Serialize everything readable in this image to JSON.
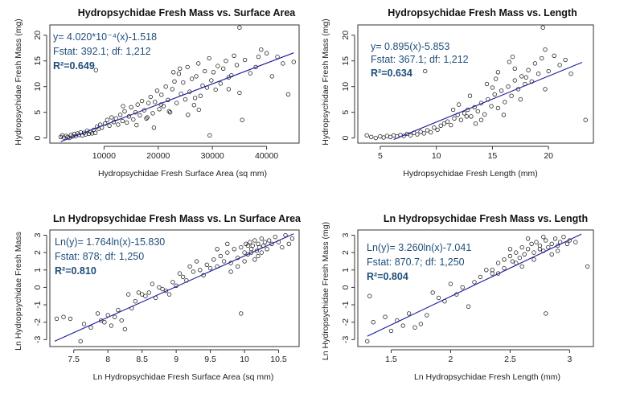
{
  "chart_data": [
    {
      "type": "scatter",
      "title": "Hydropsychidae Fresh Mass vs. Surface Area",
      "xlabel": "Hydropsychidae Fresh Surface Area (sq mm)",
      "ylabel": "Hydropsychidae Fresh Mass (mg)",
      "xlim": [
        0,
        46000
      ],
      "ylim": [
        -1,
        22
      ],
      "xticks": [
        10000,
        20000,
        30000,
        40000
      ],
      "yticks": [
        0,
        5,
        10,
        15,
        20
      ],
      "annotation": {
        "equation": "y= 4.020*10⁻⁴(x)-1.518",
        "fstat": "Fstat: 392.1; df: 1,212",
        "r2_label": "R²=",
        "r2_value": "0.649"
      },
      "fit": {
        "slope": 0.000402,
        "intercept": -1.518,
        "x_range": [
          2000,
          45000
        ]
      },
      "series": [
        {
          "x": [
            2000,
            2300,
            2600,
            3000,
            3300,
            3600,
            3900,
            4200,
            4500,
            4800,
            5100,
            5400,
            5700,
            6000,
            6300,
            6600,
            6900,
            7200,
            7500,
            7800,
            8100,
            8400,
            8700,
            9000,
            9300,
            9600,
            10200,
            10600,
            11000,
            11400,
            11800,
            12200,
            12600,
            13000,
            13400,
            13800,
            14200,
            14600,
            15000,
            15400,
            15800,
            16200,
            16600,
            17000,
            17400,
            17800,
            18200,
            18600,
            19000,
            19400,
            19800,
            20200,
            20600,
            21000,
            21400,
            21800,
            22200,
            22600,
            23000,
            23400,
            23800,
            24200,
            24600,
            25000,
            25400,
            25800,
            26200,
            26600,
            27000,
            27400,
            27800,
            28200,
            28600,
            29000,
            29400,
            29800,
            30200,
            30600,
            31000,
            31500,
            32000,
            32500,
            33000,
            33500,
            34000,
            34500,
            35000,
            35500,
            36000,
            37000,
            38000,
            39000,
            40000,
            41000,
            42000,
            43000,
            44000,
            45000,
            8500,
            13500,
            16000,
            18000,
            20500,
            22000,
            24000,
            25500,
            27500,
            29500,
            33000,
            35000,
            38500,
            22800,
            19200,
            26800
          ],
          "y": [
            0.2,
            0.5,
            0.1,
            0.4,
            0.2,
            0.0,
            0.6,
            0.3,
            0.8,
            0.4,
            0.9,
            0.6,
            1.1,
            0.5,
            1.0,
            0.7,
            1.4,
            0.8,
            1.2,
            0.9,
            1.6,
            1.0,
            2.2,
            1.8,
            2.6,
            2.0,
            2.8,
            3.5,
            2.4,
            4.0,
            3.1,
            3.8,
            2.6,
            4.5,
            3.3,
            5.2,
            3.0,
            4.2,
            6.0,
            3.6,
            5.0,
            6.5,
            4.4,
            7.2,
            5.4,
            3.8,
            6.8,
            8.0,
            4.8,
            7.0,
            9.2,
            5.6,
            8.4,
            6.2,
            10.0,
            7.4,
            5.0,
            9.5,
            11.0,
            6.8,
            12.5,
            8.6,
            10.8,
            7.5,
            13.8,
            9.0,
            11.5,
            6.4,
            12.0,
            14.5,
            8.2,
            10.2,
            13.0,
            9.8,
            15.5,
            11.2,
            12.8,
            9.4,
            14.0,
            10.6,
            13.5,
            15.0,
            11.8,
            12.2,
            16.0,
            14.2,
            21.5,
            3.5,
            15.2,
            12.6,
            13.8,
            17.2,
            16.5,
            12.0,
            15.8,
            14.5,
            8.5,
            14.8,
            13.2,
            6.2,
            2.5,
            4.0,
            6.5,
            5.2,
            13.5,
            4.5,
            5.5,
            0.5,
            9.5,
            8.8,
            15.8,
            12.8,
            2.0,
            7.8
          ]
        }
      ]
    },
    {
      "type": "scatter",
      "title": "Hydropsychidae Fresh Mass vs. Length",
      "xlabel": "Hydropsychidae Fresh Length (mm)",
      "ylabel": "Hydropsychidae Fresh Mass (mg)",
      "xlim": [
        3,
        24
      ],
      "ylim": [
        -1,
        22
      ],
      "xticks": [
        5,
        10,
        15,
        20
      ],
      "yticks": [
        0,
        5,
        10,
        15,
        20
      ],
      "annotation": {
        "equation": "y= 0.895(x)-5.853",
        "fstat": "Fstat: 367.1; df: 1,212",
        "r2_label": "R²=",
        "r2_value": "0.634"
      },
      "fit": {
        "slope": 0.895,
        "intercept": -5.853,
        "x_range": [
          6.2,
          23
        ]
      },
      "series": [
        {
          "x": [
            3.8,
            4.2,
            4.6,
            5.0,
            5.3,
            5.6,
            5.9,
            6.2,
            6.5,
            6.8,
            7.1,
            7.4,
            7.7,
            8.0,
            8.3,
            8.6,
            8.9,
            9.2,
            9.5,
            9.8,
            10.1,
            10.4,
            10.7,
            11.0,
            11.3,
            11.6,
            11.9,
            12.2,
            12.5,
            12.8,
            13.1,
            13.4,
            13.7,
            14.0,
            14.3,
            14.6,
            14.9,
            15.2,
            15.5,
            15.8,
            16.1,
            16.4,
            16.7,
            17.0,
            17.3,
            17.6,
            17.9,
            18.2,
            18.5,
            18.8,
            19.1,
            19.4,
            19.7,
            20.0,
            20.5,
            21.0,
            21.5,
            22.0,
            23.3,
            12.0,
            13.0,
            14.0,
            15.0,
            16.0,
            17.0,
            18.0,
            14.5,
            15.5,
            16.5,
            17.5,
            13.5,
            19.5,
            19.7,
            9.0,
            11.5,
            12.7,
            15.3,
            16.8
          ],
          "y": [
            0.5,
            0.2,
            0.0,
            0.3,
            0.1,
            0.4,
            0.2,
            0.5,
            0.3,
            0.6,
            0.4,
            0.8,
            0.5,
            1.0,
            0.7,
            1.2,
            0.9,
            1.5,
            1.1,
            2.0,
            1.6,
            2.4,
            2.8,
            3.2,
            2.5,
            3.8,
            4.5,
            3.5,
            4.8,
            5.5,
            4.2,
            6.0,
            5.2,
            6.8,
            4.6,
            7.5,
            6.2,
            8.5,
            5.8,
            9.2,
            7.0,
            10.0,
            8.2,
            11.2,
            9.5,
            12.0,
            10.5,
            13.2,
            11.0,
            14.5,
            12.5,
            15.5,
            17.2,
            13.0,
            16.0,
            14.2,
            15.2,
            12.5,
            3.5,
            6.5,
            8.2,
            3.5,
            9.8,
            4.5,
            13.5,
            11.8,
            10.5,
            12.8,
            14.8,
            7.5,
            2.8,
            21.5,
            9.5,
            13.0,
            5.5,
            4.2,
            11.5,
            15.8
          ]
        }
      ]
    },
    {
      "type": "scatter",
      "title": "Ln Hydropsychidae Fresh Mass vs. Ln Surface Area",
      "xlabel": "Ln Hydropsychidae Fresh Surface Area (sq mm)",
      "ylabel": "Ln Hydropsychidae Fresh Mass",
      "xlim": [
        7.15,
        10.8
      ],
      "ylim": [
        -3.4,
        3.3
      ],
      "xticks": [
        7.5,
        8.0,
        8.5,
        9.0,
        9.5,
        10.0,
        10.5
      ],
      "yticks": [
        -3,
        -2,
        -1,
        0,
        1,
        2,
        3
      ],
      "annotation": {
        "equation": "Ln(y)= 1.764ln(x)-15.830",
        "fstat": "Fstat: 878; df: 1,250",
        "r2_label": "R²=",
        "r2_value": "0.810"
      },
      "fit": {
        "slope": 1.764,
        "intercept": -15.83,
        "x_range": [
          7.22,
          10.72
        ]
      },
      "series": [
        {
          "x": [
            7.25,
            7.35,
            7.45,
            7.6,
            7.65,
            7.75,
            7.85,
            7.9,
            7.95,
            8.0,
            8.05,
            8.1,
            8.15,
            8.2,
            8.25,
            8.3,
            8.35,
            8.4,
            8.45,
            8.5,
            8.55,
            8.6,
            8.65,
            8.7,
            8.75,
            8.8,
            8.85,
            8.9,
            8.95,
            9.0,
            9.05,
            9.1,
            9.15,
            9.2,
            9.25,
            9.3,
            9.35,
            9.4,
            9.45,
            9.5,
            9.55,
            9.6,
            9.65,
            9.7,
            9.75,
            9.8,
            9.85,
            9.9,
            9.95,
            10.0,
            10.02,
            10.05,
            10.08,
            10.1,
            10.12,
            10.15,
            10.18,
            10.2,
            10.22,
            10.25,
            10.28,
            10.3,
            10.33,
            10.36,
            10.4,
            10.45,
            10.5,
            10.55,
            10.6,
            10.65,
            10.7,
            9.9,
            10.0,
            10.1,
            10.2,
            9.8,
            9.6,
            10.15,
            9.75,
            10.05,
            10.25,
            9.95
          ],
          "y": [
            -1.8,
            -1.7,
            -1.8,
            -3.1,
            -2.1,
            -2.3,
            -1.5,
            -1.9,
            -2.0,
            -1.6,
            -2.2,
            -1.7,
            -1.3,
            -1.9,
            -2.4,
            -0.4,
            -1.2,
            -0.8,
            -0.3,
            -0.4,
            -0.5,
            -0.3,
            0.2,
            -0.6,
            0.0,
            -0.1,
            -0.2,
            -0.4,
            0.3,
            0.1,
            0.8,
            0.6,
            0.4,
            1.2,
            0.9,
            1.5,
            1.0,
            0.7,
            1.3,
            1.1,
            1.6,
            1.2,
            1.8,
            1.5,
            2.0,
            1.4,
            2.2,
            1.7,
            2.3,
            2.0,
            2.5,
            1.9,
            2.6,
            2.2,
            2.4,
            2.7,
            2.1,
            2.5,
            2.3,
            2.8,
            2.4,
            2.6,
            2.2,
            2.7,
            2.5,
            2.9,
            2.6,
            2.3,
            3.0,
            2.5,
            2.8,
            1.2,
            1.5,
            2.0,
            1.8,
            0.9,
            2.2,
            1.6,
            2.5,
            2.4,
            2.0,
            -1.5
          ]
        }
      ]
    },
    {
      "type": "scatter",
      "title": "Ln Hydropsychidae Fresh Mass vs. Length",
      "xlabel": "Ln Hydropsychidae Fresh Length (mm)",
      "ylabel": "Ln Hydropsychidae Fresh Mass (mg)",
      "xlim": [
        1.22,
        3.2
      ],
      "ylim": [
        -3.4,
        3.3
      ],
      "xticks": [
        1.5,
        2.0,
        2.5,
        3.0
      ],
      "yticks": [
        -3,
        -2,
        -1,
        0,
        1,
        2,
        3
      ],
      "annotation": {
        "equation": "Ln(y)= 3.260ln(x)-7.041",
        "fstat": "Fstat: 870.7; df: 1,250",
        "r2_label": "R²=",
        "r2_value": "0.804"
      },
      "fit": {
        "slope": 3.26,
        "intercept": -7.041,
        "x_range": [
          1.3,
          3.1
        ]
      },
      "series": [
        {
          "x": [
            1.3,
            1.32,
            1.35,
            1.45,
            1.5,
            1.55,
            1.6,
            1.65,
            1.7,
            1.75,
            1.8,
            1.85,
            1.9,
            1.95,
            2.0,
            2.05,
            2.1,
            2.15,
            2.2,
            2.25,
            2.3,
            2.35,
            2.4,
            2.45,
            2.5,
            2.52,
            2.55,
            2.58,
            2.6,
            2.62,
            2.65,
            2.68,
            2.7,
            2.72,
            2.75,
            2.78,
            2.8,
            2.82,
            2.85,
            2.88,
            2.9,
            2.92,
            2.95,
            2.98,
            3.0,
            3.05,
            3.15,
            2.45,
            2.55,
            2.65,
            2.75,
            2.85,
            2.6,
            2.7,
            2.8,
            2.5,
            2.9,
            2.4,
            2.35,
            2.78
          ],
          "y": [
            -3.1,
            -0.5,
            -2.0,
            -1.7,
            -2.5,
            -1.9,
            -2.2,
            -1.5,
            -2.3,
            -2.1,
            -1.6,
            -0.3,
            -0.6,
            -0.8,
            0.2,
            -0.4,
            0.0,
            -1.1,
            0.3,
            0.6,
            1.0,
            0.8,
            1.4,
            1.1,
            1.8,
            1.5,
            2.0,
            1.7,
            2.3,
            1.9,
            2.2,
            2.5,
            2.0,
            2.6,
            2.4,
            2.1,
            2.7,
            2.3,
            2.5,
            2.8,
            2.4,
            2.6,
            2.9,
            2.5,
            2.7,
            2.6,
            1.2,
            1.6,
            1.4,
            2.8,
            2.2,
            1.9,
            1.2,
            1.6,
            -1.5,
            2.2,
            2.1,
            0.8,
            1.0,
            2.9
          ]
        }
      ]
    }
  ]
}
